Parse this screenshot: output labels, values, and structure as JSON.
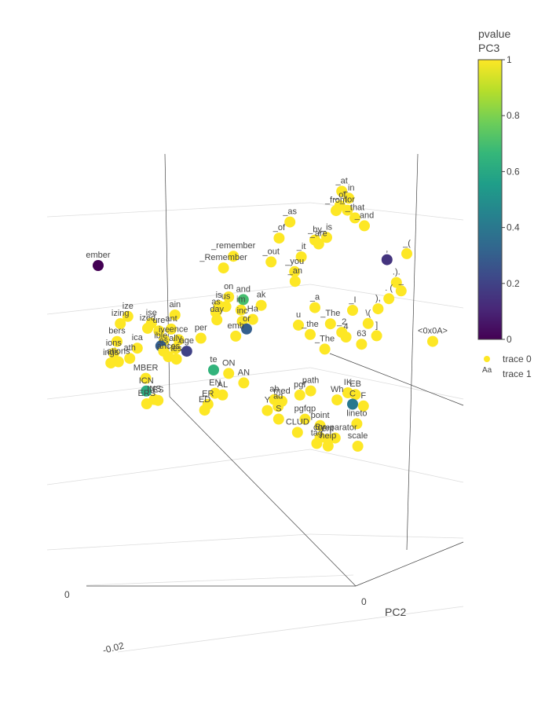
{
  "chart_data": {
    "type": "scatter3d",
    "axes": {
      "x": {
        "title": "",
        "ticks": [
          "-0.02",
          "0"
        ]
      },
      "y": {
        "title": "PC2",
        "ticks": [
          "0"
        ]
      },
      "z": {
        "title": "",
        "ticks": []
      }
    },
    "colorbar": {
      "title_line1": "pvalue",
      "title_line2": "PC3",
      "ticks": [
        "1",
        "0.8",
        "0.6",
        "0.4",
        "0.2",
        "0"
      ],
      "cmin": 0,
      "cmax": 1
    },
    "legend": {
      "entries": [
        {
          "name": "trace 0",
          "marker": "circle"
        },
        {
          "name": "trace 1",
          "marker": "text",
          "glyph": "Aa"
        }
      ]
    },
    "traces": [
      {
        "name": "trace 0",
        "mode": "markers"
      },
      {
        "name": "trace 1",
        "mode": "text"
      }
    ],
    "labeled_points": [
      {
        "t": "_at",
        "x": 0.81,
        "y": 0.25,
        "z": 0.92,
        "p": 1
      },
      {
        "t": "_in",
        "x": 0.83,
        "y": 0.26,
        "z": 0.9,
        "p": 1
      },
      {
        "t": "_of",
        "x": 0.8,
        "y": 0.28,
        "z": 0.88,
        "p": 1
      },
      {
        "t": "_for",
        "x": 0.82,
        "y": 0.3,
        "z": 0.87,
        "p": 1
      },
      {
        "t": "_from",
        "x": 0.79,
        "y": 0.27,
        "z": 0.86,
        "p": 1
      },
      {
        "t": "_that",
        "x": 0.84,
        "y": 0.32,
        "z": 0.85,
        "p": 1
      },
      {
        "t": "_and",
        "x": 0.86,
        "y": 0.38,
        "z": 0.84,
        "p": 1
      },
      {
        "t": "_as",
        "x": 0.66,
        "y": 0.2,
        "z": 0.8,
        "p": 1
      },
      {
        "t": "_is",
        "x": 0.75,
        "y": 0.35,
        "z": 0.79,
        "p": 1
      },
      {
        "t": "_by",
        "x": 0.72,
        "y": 0.31,
        "z": 0.77,
        "p": 1
      },
      {
        "t": "_are",
        "x": 0.73,
        "y": 0.32,
        "z": 0.76,
        "p": 1
      },
      {
        "t": "_of",
        "x": 0.63,
        "y": 0.18,
        "z": 0.74,
        "p": 1
      },
      {
        "t": "_it",
        "x": 0.68,
        "y": 0.3,
        "z": 0.71,
        "p": 1
      },
      {
        "t": "_remember",
        "x": 0.5,
        "y": 0.12,
        "z": 0.66,
        "p": 1
      },
      {
        "t": "_out",
        "x": 0.6,
        "y": 0.22,
        "z": 0.67,
        "p": 1
      },
      {
        "t": "_you",
        "x": 0.66,
        "y": 0.3,
        "z": 0.66,
        "p": 1
      },
      {
        "t": "_an",
        "x": 0.66,
        "y": 0.31,
        "z": 0.63,
        "p": 1
      },
      {
        "t": "_Remember",
        "x": 0.47,
        "y": 0.12,
        "z": 0.62,
        "p": 1
      },
      {
        "t": "ember",
        "x": 0.1,
        "y": 0.05,
        "z": 0.6,
        "p": 0
      },
      {
        "t": "_(",
        "x": 0.95,
        "y": 0.65,
        "z": 0.82,
        "p": 1
      },
      {
        "t": ",",
        "x": 0.9,
        "y": 0.58,
        "z": 0.78,
        "p": 0.15
      },
      {
        "t": ".).",
        "x": 0.92,
        "y": 0.64,
        "z": 0.72,
        "p": 1
      },
      {
        "t": "_",
        "x": 0.93,
        "y": 0.67,
        "z": 0.7,
        "p": 1
      },
      {
        "t": ". (",
        "x": 0.9,
        "y": 0.62,
        "z": 0.66,
        "p": 1
      },
      {
        "t": "),",
        "x": 0.87,
        "y": 0.6,
        "z": 0.62,
        "p": 1
      },
      {
        "t": "<0x0A>",
        "x": 1.0,
        "y": 0.85,
        "z": 0.58,
        "p": 1
      },
      {
        "t": "_I",
        "x": 0.8,
        "y": 0.55,
        "z": 0.6,
        "p": 1
      },
      {
        "t": "\\(",
        "x": 0.84,
        "y": 0.6,
        "z": 0.57,
        "p": 1
      },
      {
        "t": "_a",
        "x": 0.7,
        "y": 0.45,
        "z": 0.58,
        "p": 1
      },
      {
        "t": "_The",
        "x": 0.74,
        "y": 0.5,
        "z": 0.54,
        "p": 1
      },
      {
        "t": "]",
        "x": 0.86,
        "y": 0.64,
        "z": 0.54,
        "p": 1
      },
      {
        "t": "_2",
        "x": 0.77,
        "y": 0.53,
        "z": 0.52,
        "p": 1
      },
      {
        "t": "4",
        "x": 0.78,
        "y": 0.55,
        "z": 0.51,
        "p": 1
      },
      {
        "t": "63",
        "x": 0.82,
        "y": 0.6,
        "z": 0.5,
        "p": 1
      },
      {
        "t": "u",
        "x": 0.65,
        "y": 0.45,
        "z": 0.52,
        "p": 1
      },
      {
        "t": "_the",
        "x": 0.68,
        "y": 0.49,
        "z": 0.5,
        "p": 1
      },
      {
        "t": "_The",
        "x": 0.72,
        "y": 0.52,
        "z": 0.46,
        "p": 1
      },
      {
        "t": "on",
        "x": 0.46,
        "y": 0.3,
        "z": 0.57,
        "p": 1
      },
      {
        "t": "and",
        "x": 0.5,
        "y": 0.33,
        "z": 0.57,
        "p": 0.7
      },
      {
        "t": "ak",
        "x": 0.55,
        "y": 0.36,
        "z": 0.56,
        "p": 1
      },
      {
        "t": "is",
        "x": 0.43,
        "y": 0.3,
        "z": 0.54,
        "p": 1
      },
      {
        "t": "us",
        "x": 0.45,
        "y": 0.31,
        "z": 0.54,
        "p": 1
      },
      {
        "t": "im",
        "x": 0.49,
        "y": 0.35,
        "z": 0.54,
        "p": 1
      },
      {
        "t": "as",
        "x": 0.42,
        "y": 0.31,
        "z": 0.52,
        "p": 1
      },
      {
        "t": "Ha",
        "x": 0.52,
        "y": 0.39,
        "z": 0.52,
        "p": 1
      },
      {
        "t": "inc",
        "x": 0.49,
        "y": 0.38,
        "z": 0.51,
        "p": 1
      },
      {
        "t": "day",
        "x": 0.42,
        "y": 0.33,
        "z": 0.5,
        "p": 1
      },
      {
        "t": "or",
        "x": 0.5,
        "y": 0.4,
        "z": 0.49,
        "p": 0.3
      },
      {
        "t": "emb",
        "x": 0.47,
        "y": 0.38,
        "z": 0.46,
        "p": 1
      },
      {
        "t": "ain",
        "x": 0.3,
        "y": 0.28,
        "z": 0.5,
        "p": 1
      },
      {
        "t": "ize",
        "x": 0.18,
        "y": 0.12,
        "z": 0.45,
        "p": 1
      },
      {
        "t": "ise",
        "x": 0.24,
        "y": 0.2,
        "z": 0.45,
        "p": 1
      },
      {
        "t": "ant",
        "x": 0.29,
        "y": 0.27,
        "z": 0.45,
        "p": 1
      },
      {
        "t": "ized",
        "x": 0.23,
        "y": 0.19,
        "z": 0.43,
        "p": 1
      },
      {
        "t": "ure",
        "x": 0.26,
        "y": 0.22,
        "z": 0.43,
        "p": 1
      },
      {
        "t": "izing",
        "x": 0.16,
        "y": 0.1,
        "z": 0.42,
        "p": 1
      },
      {
        "t": "ence",
        "x": 0.31,
        "y": 0.29,
        "z": 0.42,
        "p": 1
      },
      {
        "t": "ive",
        "x": 0.27,
        "y": 0.26,
        "z": 0.41,
        "p": 1
      },
      {
        "t": "per",
        "x": 0.37,
        "y": 0.34,
        "z": 0.44,
        "p": 1
      },
      {
        "t": "ible",
        "x": 0.26,
        "y": 0.26,
        "z": 0.39,
        "p": 0.3
      },
      {
        "t": "ally",
        "x": 0.3,
        "y": 0.29,
        "z": 0.39,
        "p": 1
      },
      {
        "t": "age",
        "x": 0.33,
        "y": 0.32,
        "z": 0.39,
        "p": 0.2
      },
      {
        "t": "es",
        "x": 0.27,
        "y": 0.25,
        "z": 0.37,
        "p": 1
      },
      {
        "t": "ances",
        "x": 0.28,
        "y": 0.28,
        "z": 0.36,
        "p": 1
      },
      {
        "t": "les",
        "x": 0.3,
        "y": 0.31,
        "z": 0.36,
        "p": 1
      },
      {
        "t": "bers",
        "x": 0.15,
        "y": 0.1,
        "z": 0.36,
        "p": 1
      },
      {
        "t": "ica",
        "x": 0.2,
        "y": 0.18,
        "z": 0.36,
        "p": 1
      },
      {
        "t": "ions",
        "x": 0.14,
        "y": 0.1,
        "z": 0.32,
        "p": 1
      },
      {
        "t": "ath",
        "x": 0.18,
        "y": 0.16,
        "z": 0.32,
        "p": 1
      },
      {
        "t": "ations",
        "x": 0.15,
        "y": 0.13,
        "z": 0.3,
        "p": 1
      },
      {
        "t": "ings",
        "x": 0.13,
        "y": 0.11,
        "z": 0.29,
        "p": 1
      },
      {
        "t": "MBER",
        "x": 0.22,
        "y": 0.22,
        "z": 0.27,
        "p": 1
      },
      {
        "t": "ICN",
        "x": 0.22,
        "y": 0.23,
        "z": 0.23,
        "p": 0.62
      },
      {
        "t": "INS",
        "x": 0.24,
        "y": 0.26,
        "z": 0.21,
        "p": 1
      },
      {
        "t": "ES",
        "x": 0.25,
        "y": 0.27,
        "z": 0.21,
        "p": 1
      },
      {
        "t": "ERS",
        "x": 0.22,
        "y": 0.24,
        "z": 0.19,
        "p": 1
      },
      {
        "t": "te",
        "x": 0.4,
        "y": 0.4,
        "z": 0.35,
        "p": 0.65
      },
      {
        "t": "ON",
        "x": 0.44,
        "y": 0.44,
        "z": 0.35,
        "p": 1
      },
      {
        "t": "AN",
        "x": 0.48,
        "y": 0.48,
        "z": 0.33,
        "p": 1
      },
      {
        "t": "EN",
        "x": 0.4,
        "y": 0.43,
        "z": 0.28,
        "p": 1
      },
      {
        "t": "AL",
        "x": 0.42,
        "y": 0.45,
        "z": 0.28,
        "p": 1
      },
      {
        "t": "ER",
        "x": 0.38,
        "y": 0.42,
        "z": 0.24,
        "p": 1
      },
      {
        "t": "ED",
        "x": 0.37,
        "y": 0.42,
        "z": 0.22,
        "p": 1
      },
      {
        "t": "Y",
        "x": 0.54,
        "y": 0.56,
        "z": 0.26,
        "p": 1
      },
      {
        "t": "S",
        "x": 0.57,
        "y": 0.59,
        "z": 0.24,
        "p": 1
      },
      {
        "t": "CLUD",
        "x": 0.62,
        "y": 0.64,
        "z": 0.21,
        "p": 1
      },
      {
        "t": "By",
        "x": 0.68,
        "y": 0.7,
        "z": 0.21,
        "p": 1
      },
      {
        "t": "comparator",
        "x": 0.72,
        "y": 0.74,
        "z": 0.22,
        "p": 1
      },
      {
        "t": "scale",
        "x": 0.78,
        "y": 0.8,
        "z": 0.21,
        "p": 1
      },
      {
        "t": "tag",
        "x": 0.67,
        "y": 0.7,
        "z": 0.19,
        "p": 1
      },
      {
        "t": "help",
        "x": 0.7,
        "y": 0.73,
        "z": 0.19,
        "p": 1
      },
      {
        "t": "pgfqp",
        "x": 0.64,
        "y": 0.66,
        "z": 0.26,
        "p": 1
      },
      {
        "t": "point",
        "x": 0.68,
        "y": 0.7,
        "z": 0.25,
        "p": 1
      },
      {
        "t": "path",
        "x": 0.66,
        "y": 0.64,
        "z": 0.35,
        "p": 1
      },
      {
        "t": "pgf",
        "x": 0.63,
        "y": 0.62,
        "z": 0.33,
        "p": 1
      },
      {
        "t": "Wh",
        "x": 0.73,
        "y": 0.71,
        "z": 0.34,
        "p": 1
      },
      {
        "t": "IK",
        "x": 0.76,
        "y": 0.73,
        "z": 0.37,
        "p": 1
      },
      {
        "t": "EB",
        "x": 0.78,
        "y": 0.75,
        "z": 0.37,
        "p": 1
      },
      {
        "t": "C",
        "x": 0.77,
        "y": 0.76,
        "z": 0.34,
        "p": 0.4
      },
      {
        "t": "F",
        "x": 0.8,
        "y": 0.78,
        "z": 0.34,
        "p": 1
      },
      {
        "t": "lineto",
        "x": 0.78,
        "y": 0.78,
        "z": 0.28,
        "p": 1
      },
      {
        "t": "ad",
        "x": 0.57,
        "y": 0.58,
        "z": 0.28,
        "p": 1
      },
      {
        "t": "ah",
        "x": 0.56,
        "y": 0.57,
        "z": 0.3,
        "p": 1
      },
      {
        "t": "med",
        "x": 0.58,
        "y": 0.59,
        "z": 0.3,
        "p": 1
      },
      {
        "t": "ent",
        "x": 0.7,
        "y": 0.72,
        "z": 0.21,
        "p": 1
      }
    ]
  }
}
